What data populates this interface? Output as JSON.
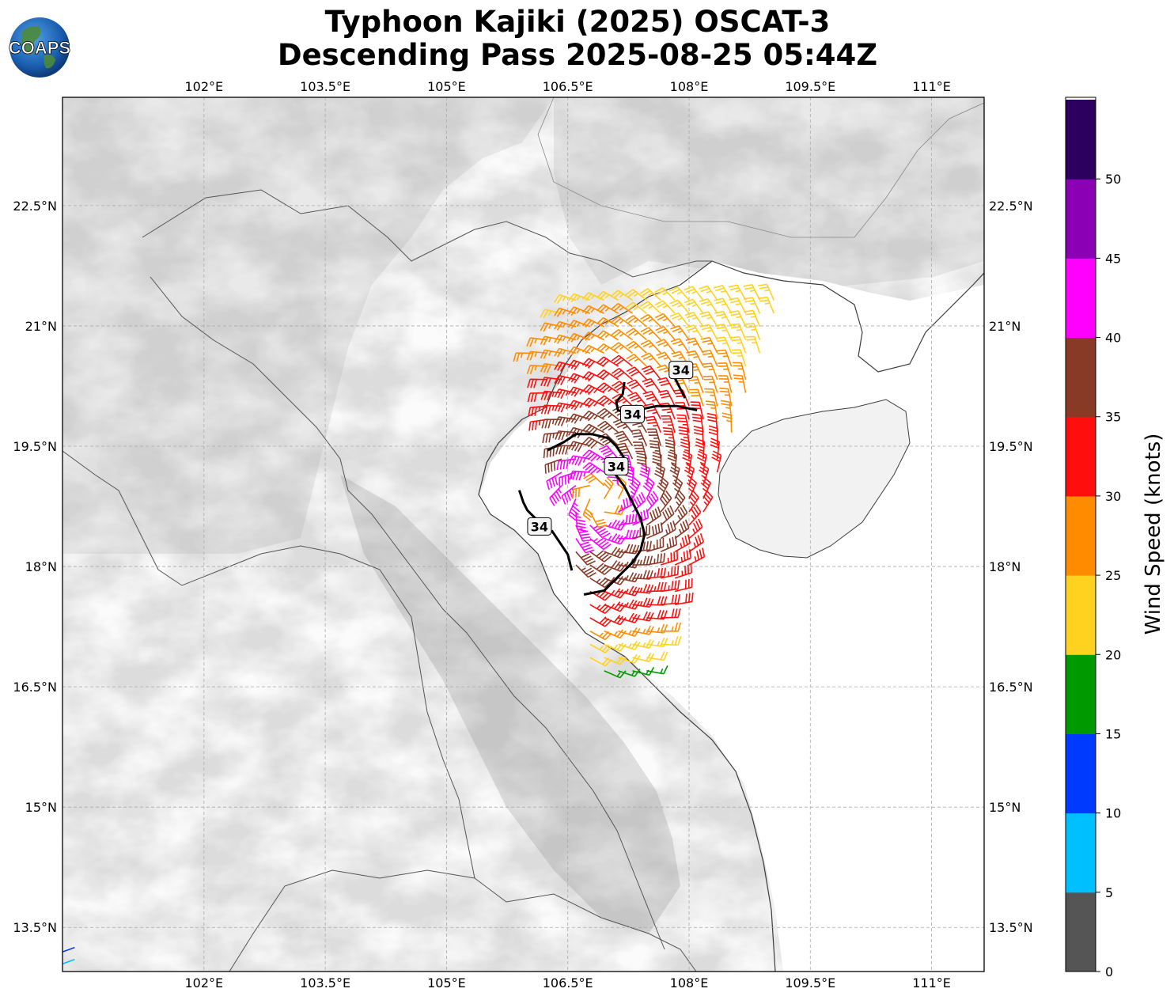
{
  "header": {
    "title_line1": "Typhoon Kajiki (2025) OSCAT-3",
    "title_line2": "Descending Pass 2025-08-25 05:44Z",
    "logo_text": "COAPS"
  },
  "map": {
    "extent": {
      "lon_min": 100.25,
      "lon_max": 111.65,
      "lat_min": 12.95,
      "lat_max": 23.85
    },
    "lon_ticks": [
      {
        "value": 102,
        "label": "102°E"
      },
      {
        "value": 103.5,
        "label": "103.5°E"
      },
      {
        "value": 105,
        "label": "105°E"
      },
      {
        "value": 106.5,
        "label": "106.5°E"
      },
      {
        "value": 108,
        "label": "108°E"
      },
      {
        "value": 109.5,
        "label": "109.5°E"
      },
      {
        "value": 111,
        "label": "111°E"
      }
    ],
    "lat_ticks": [
      {
        "value": 22.5,
        "label": "22.5°N"
      },
      {
        "value": 21,
        "label": "21°N"
      },
      {
        "value": 19.5,
        "label": "19.5°N"
      },
      {
        "value": 18,
        "label": "18°N"
      },
      {
        "value": 16.5,
        "label": "16.5°N"
      },
      {
        "value": 15,
        "label": "15°N"
      },
      {
        "value": 13.5,
        "label": "13.5°N"
      }
    ],
    "gridlines": true,
    "contour_labels": [
      {
        "text": "34",
        "lon": 107.9,
        "lat": 20.45
      },
      {
        "text": "34",
        "lon": 107.3,
        "lat": 19.9
      },
      {
        "text": "34",
        "lon": 107.1,
        "lat": 19.25
      },
      {
        "text": "34",
        "lon": 106.15,
        "lat": 18.5
      }
    ],
    "contour_34kt": [
      [
        [
          107.8,
          20.4
        ],
        [
          107.85,
          20.3
        ],
        [
          107.9,
          20.2
        ],
        [
          107.95,
          20.1
        ]
      ],
      [
        [
          107.2,
          20.3
        ],
        [
          107.18,
          20.15
        ],
        [
          107.1,
          20.05
        ],
        [
          107.12,
          19.95
        ],
        [
          107.25,
          19.9
        ]
      ],
      [
        [
          107.35,
          19.95
        ],
        [
          107.6,
          20.0
        ],
        [
          107.85,
          20.0
        ],
        [
          108.1,
          19.95
        ]
      ],
      [
        [
          106.25,
          19.45
        ],
        [
          106.45,
          19.55
        ],
        [
          106.6,
          19.65
        ],
        [
          106.8,
          19.65
        ],
        [
          107.0,
          19.6
        ],
        [
          107.1,
          19.5
        ],
        [
          107.2,
          19.35
        ]
      ],
      [
        [
          107.05,
          19.2
        ],
        [
          107.2,
          19.0
        ],
        [
          107.3,
          18.8
        ],
        [
          107.4,
          18.6
        ],
        [
          107.45,
          18.4
        ],
        [
          107.4,
          18.2
        ],
        [
          107.3,
          18.05
        ],
        [
          107.15,
          17.9
        ],
        [
          106.95,
          17.7
        ],
        [
          106.7,
          17.65
        ]
      ],
      [
        [
          105.9,
          18.95
        ],
        [
          105.95,
          18.8
        ],
        [
          106.0,
          18.7
        ],
        [
          106.1,
          18.6
        ]
      ],
      [
        [
          106.3,
          18.45
        ],
        [
          106.4,
          18.3
        ],
        [
          106.5,
          18.15
        ],
        [
          106.55,
          17.95
        ]
      ]
    ]
  },
  "wind_barbs": {
    "colors": {
      "0-5": "#555555",
      "5-10": "#00bfff",
      "10-15": "#0039ff",
      "15-20": "#009a00",
      "20-25": "#ffd21f",
      "25-30": "#ff8c00",
      "30-35": "#ff0e0e",
      "35-40": "#883a26",
      "40-45": "#ff00ff",
      "45-50": "#8b00b5",
      "50+": "#2b005e"
    },
    "corner_barbs": [
      {
        "lon": 100.4,
        "lat": 13.25,
        "speed": 12
      },
      {
        "lon": 100.4,
        "lat": 13.1,
        "speed": 8
      }
    ]
  },
  "colorbar": {
    "label": "Wind Speed (knots)",
    "ticks": [
      "0",
      "5",
      "10",
      "15",
      "20",
      "25",
      "30",
      "35",
      "40",
      "45",
      "50"
    ],
    "bands": [
      "#555555",
      "#00bfff",
      "#0039ff",
      "#009a00",
      "#ffd21f",
      "#ff8c00",
      "#ff0e0e",
      "#883a26",
      "#ff00ff",
      "#8b00b5",
      "#2b005e"
    ]
  }
}
